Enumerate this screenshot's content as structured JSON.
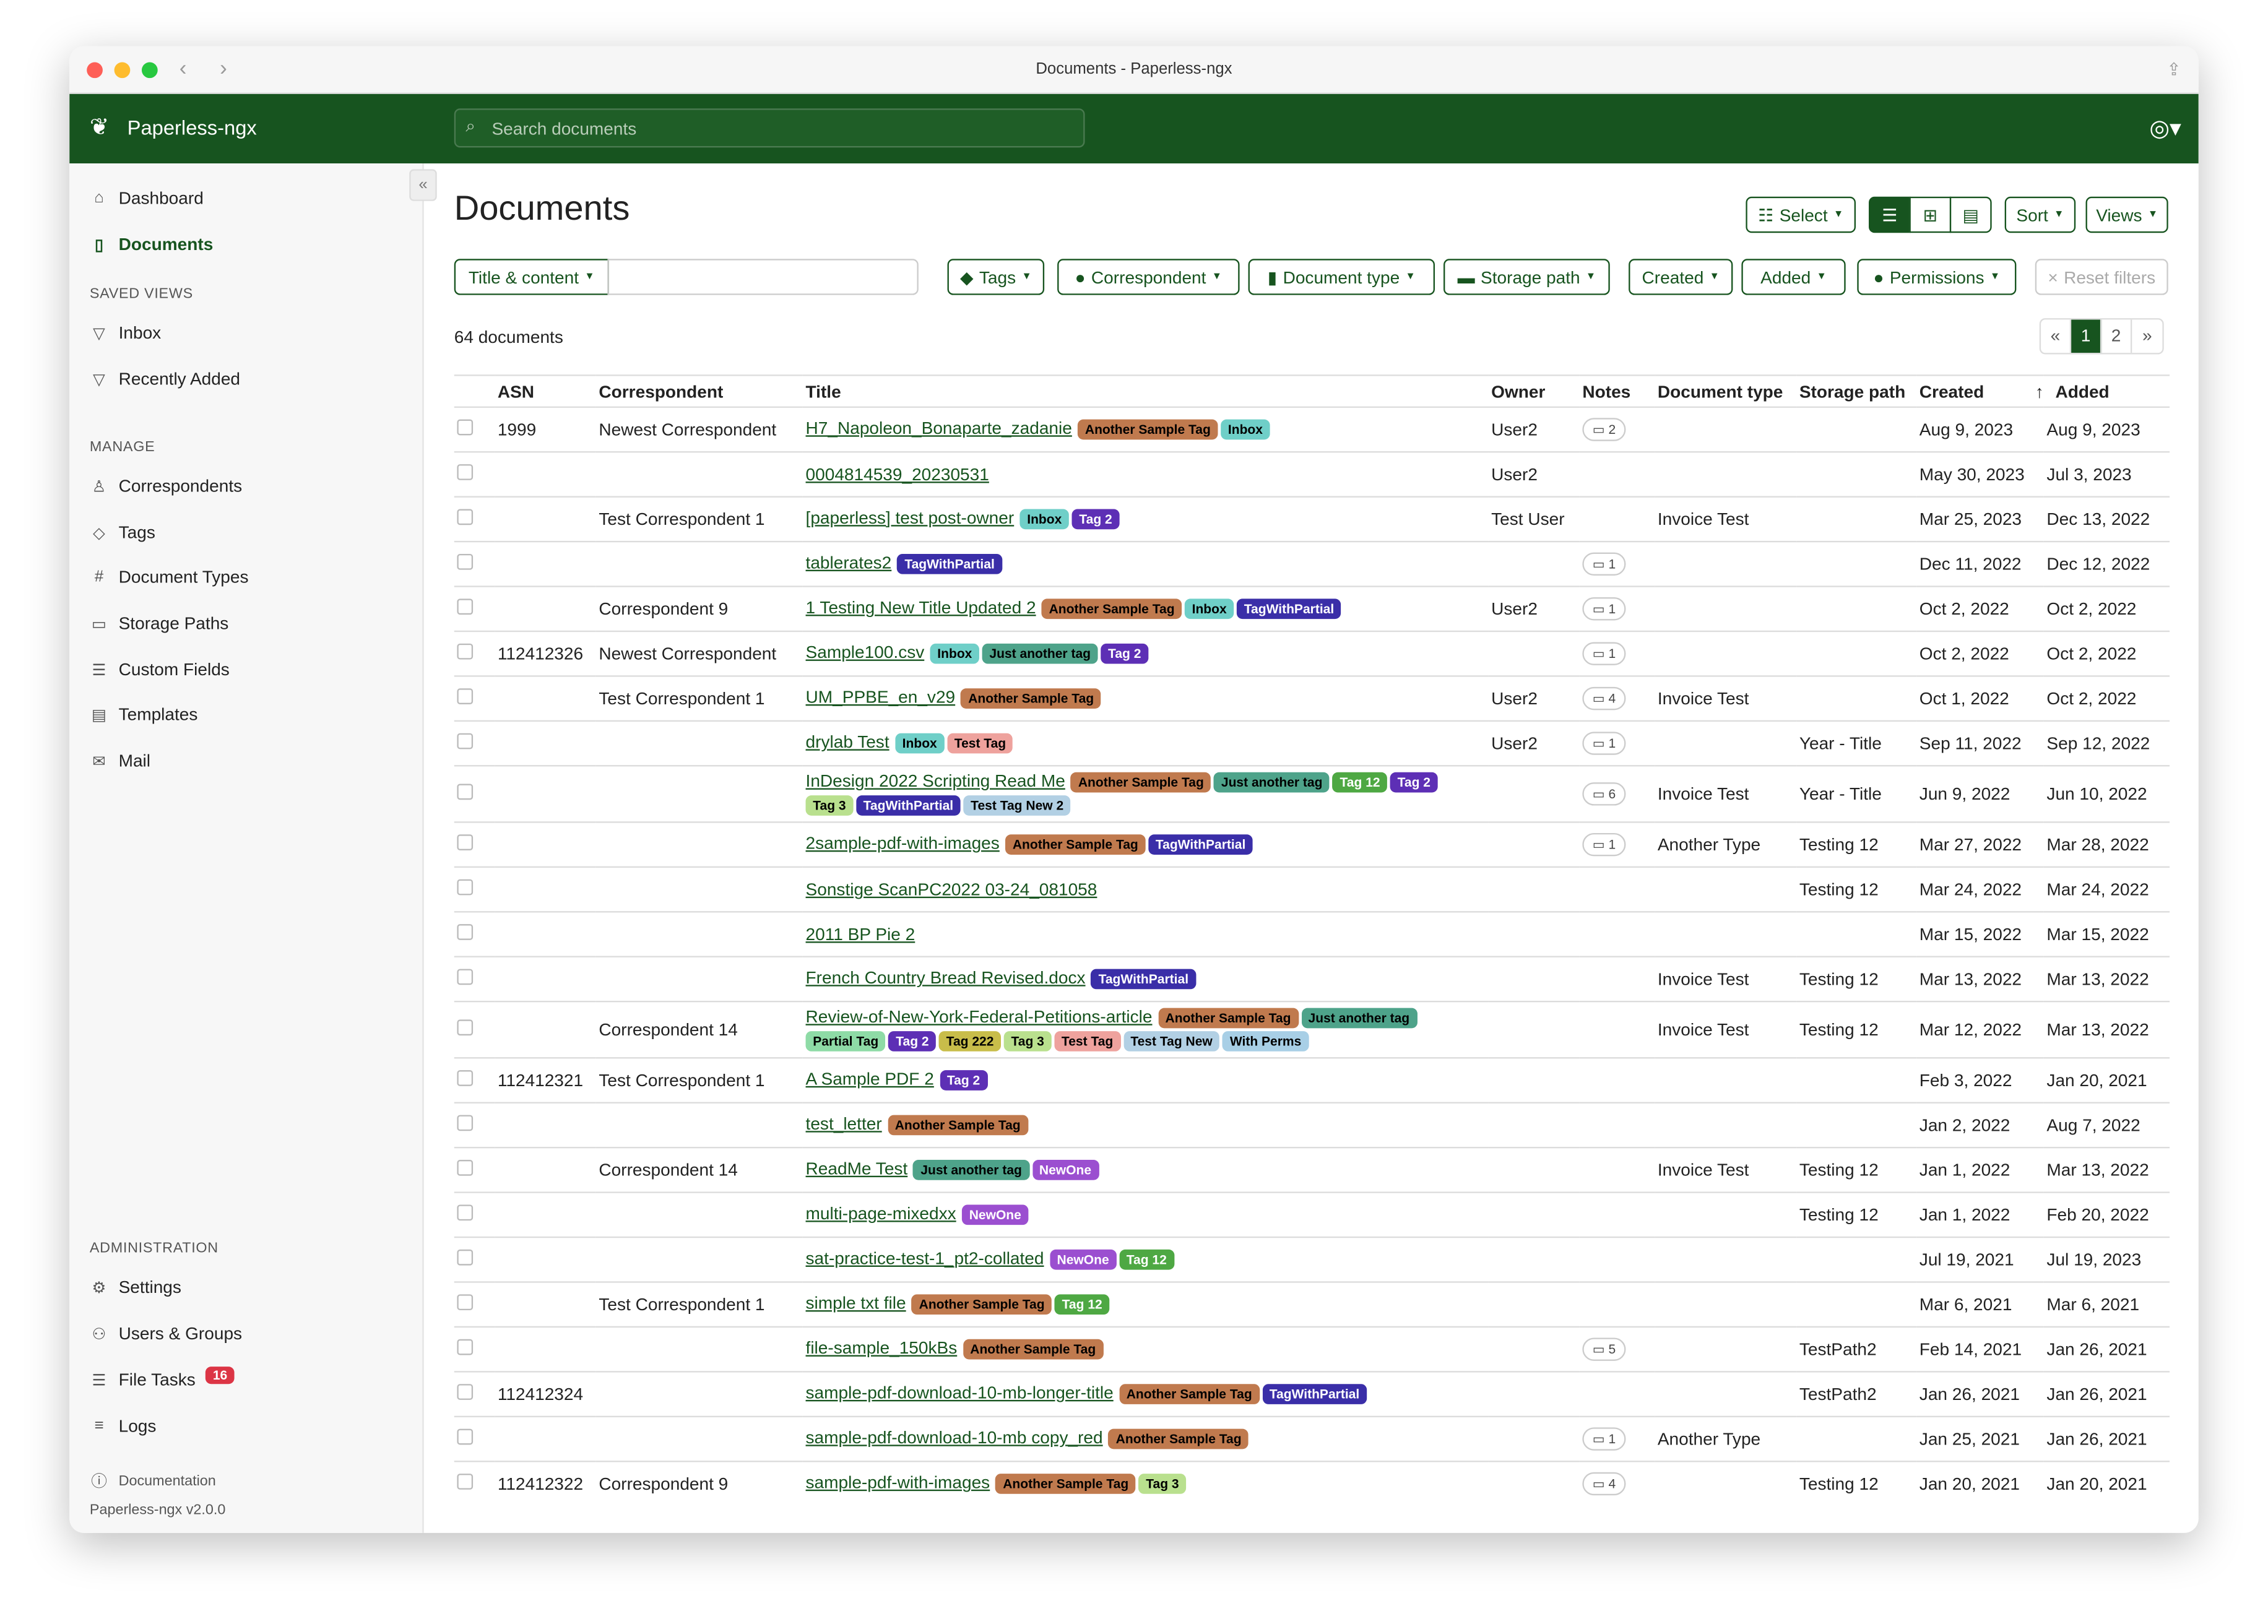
{
  "window": {
    "title": "Documents - Paperless-ngx"
  },
  "app": {
    "name": "Paperless-ngx",
    "search_placeholder": "Search documents"
  },
  "sidebar": {
    "items": [
      {
        "label": "Dashboard",
        "icon": "house-icon"
      },
      {
        "label": "Documents",
        "icon": "file-icon"
      }
    ],
    "saved_views_header": "SAVED VIEWS",
    "saved_views": [
      {
        "label": "Inbox"
      },
      {
        "label": "Recently Added"
      }
    ],
    "manage_header": "MANAGE",
    "manage": [
      {
        "label": "Correspondents",
        "icon": "person-icon"
      },
      {
        "label": "Tags",
        "icon": "tag-icon"
      },
      {
        "label": "Document Types",
        "icon": "hash-icon"
      },
      {
        "label": "Storage Paths",
        "icon": "folder-icon"
      },
      {
        "label": "Custom Fields",
        "icon": "ui-checks-icon"
      },
      {
        "label": "Templates",
        "icon": "file-text-icon"
      },
      {
        "label": "Mail",
        "icon": "envelope-icon"
      }
    ],
    "admin_header": "ADMINISTRATION",
    "admin": [
      {
        "label": "Settings",
        "icon": "gear-icon"
      },
      {
        "label": "Users & Groups",
        "icon": "people-icon"
      },
      {
        "label": "File Tasks",
        "icon": "list-icon",
        "badge": "16"
      },
      {
        "label": "Logs",
        "icon": "text-icon"
      }
    ],
    "documentation": "Documentation",
    "version": "Paperless-ngx v2.0.0"
  },
  "page": {
    "title": "Documents",
    "select": "Select",
    "sort": "Sort",
    "views": "Views",
    "count": "64 documents",
    "pages": [
      "«",
      "1",
      "2",
      "»"
    ]
  },
  "filters": {
    "text_mode": "Title & content",
    "tags": "Tags",
    "correspondent": "Correspondent",
    "document_type": "Document type",
    "storage_path": "Storage path",
    "created": "Created",
    "added": "Added",
    "permissions": "Permissions",
    "reset": "Reset filters"
  },
  "columns": [
    "ASN",
    "Correspondent",
    "Title",
    "Owner",
    "Notes",
    "Document type",
    "Storage path",
    "Created",
    "Added"
  ],
  "tag_colors": {
    "Another Sample Tag": [
      "#c07a4e",
      "#000"
    ],
    "Inbox": [
      "#6fcfc8",
      "#000"
    ],
    "Tag 2": [
      "#5d2fb5",
      "#fff"
    ],
    "TagWithPartial": [
      "#3a2ea8",
      "#fff"
    ],
    "Just another tag": [
      "#4ea38a",
      "#000"
    ],
    "Test Tag": [
      "#eea29d",
      "#000"
    ],
    "Tag 12": [
      "#4ea843",
      "#fff"
    ],
    "Tag 3": [
      "#b9e08e",
      "#000"
    ],
    "Test Tag New 2": [
      "#b2d0e4",
      "#000"
    ],
    "Partial Tag": [
      "#8edba6",
      "#000"
    ],
    "Tag 222": [
      "#c8bd4a",
      "#000"
    ],
    "Test Tag New": [
      "#b2d0e4",
      "#000"
    ],
    "With Perms": [
      "#a8cfe6",
      "#000"
    ],
    "NewOne": [
      "#9b4fd0",
      "#fff"
    ]
  },
  "rows": [
    {
      "asn": "1999",
      "correspondent": "Newest Correspondent",
      "title": "H7_Napoleon_Bonaparte_zadanie",
      "tags": [
        "Another Sample Tag",
        "Inbox"
      ],
      "owner": "User2",
      "notes": "2",
      "doctype": "",
      "path": "",
      "created": "Aug 9, 2023",
      "added": "Aug 9, 2023"
    },
    {
      "asn": "",
      "correspondent": "",
      "title": "0004814539_20230531",
      "tags": [],
      "owner": "User2",
      "notes": "",
      "doctype": "",
      "path": "",
      "created": "May 30, 2023",
      "added": "Jul 3, 2023"
    },
    {
      "asn": "",
      "correspondent": "Test Correspondent 1",
      "title": "[paperless] test post-owner",
      "tags": [
        "Inbox",
        "Tag 2"
      ],
      "owner": "Test User",
      "notes": "",
      "doctype": "Invoice Test",
      "path": "",
      "created": "Mar 25, 2023",
      "added": "Dec 13, 2022"
    },
    {
      "asn": "",
      "correspondent": "",
      "title": "tablerates2",
      "tags": [
        "TagWithPartial"
      ],
      "owner": "",
      "notes": "1",
      "doctype": "",
      "path": "",
      "created": "Dec 11, 2022",
      "added": "Dec 12, 2022"
    },
    {
      "asn": "",
      "correspondent": "Correspondent 9",
      "title": "1 Testing New Title Updated 2",
      "tags": [
        "Another Sample Tag",
        "Inbox",
        "TagWithPartial"
      ],
      "owner": "User2",
      "notes": "1",
      "doctype": "",
      "path": "",
      "created": "Oct 2, 2022",
      "added": "Oct 2, 2022"
    },
    {
      "asn": "112412326",
      "correspondent": "Newest Correspondent",
      "title": "Sample100.csv",
      "tags": [
        "Inbox",
        "Just another tag",
        "Tag 2"
      ],
      "owner": "",
      "notes": "1",
      "doctype": "",
      "path": "",
      "created": "Oct 2, 2022",
      "added": "Oct 2, 2022"
    },
    {
      "asn": "",
      "correspondent": "Test Correspondent 1",
      "title": "UM_PPBE_en_v29",
      "tags": [
        "Another Sample Tag"
      ],
      "owner": "User2",
      "notes": "4",
      "doctype": "Invoice Test",
      "path": "",
      "created": "Oct 1, 2022",
      "added": "Oct 2, 2022"
    },
    {
      "asn": "",
      "correspondent": "",
      "title": "drylab Test",
      "tags": [
        "Inbox",
        "Test Tag"
      ],
      "owner": "User2",
      "notes": "1",
      "doctype": "",
      "path": "Year - Title",
      "created": "Sep 11, 2022",
      "added": "Sep 12, 2022"
    },
    {
      "asn": "",
      "correspondent": "",
      "title": "InDesign 2022 Scripting Read Me",
      "tags": [
        "Another Sample Tag",
        "Just another tag",
        "Tag 12",
        "Tag 2",
        "Tag 3",
        "TagWithPartial",
        "Test Tag New 2"
      ],
      "owner": "",
      "notes": "6",
      "doctype": "Invoice Test",
      "path": "Year - Title",
      "created": "Jun 9, 2022",
      "added": "Jun 10, 2022"
    },
    {
      "asn": "",
      "correspondent": "",
      "title": "2sample-pdf-with-images",
      "tags": [
        "Another Sample Tag",
        "TagWithPartial"
      ],
      "owner": "",
      "notes": "1",
      "doctype": "Another Type",
      "path": "Testing 12",
      "created": "Mar 27, 2022",
      "added": "Mar 28, 2022"
    },
    {
      "asn": "",
      "correspondent": "",
      "title": "Sonstige ScanPC2022 03-24_081058",
      "tags": [],
      "owner": "",
      "notes": "",
      "doctype": "",
      "path": "Testing 12",
      "created": "Mar 24, 2022",
      "added": "Mar 24, 2022"
    },
    {
      "asn": "",
      "correspondent": "",
      "title": "2011 BP Pie 2",
      "tags": [],
      "owner": "",
      "notes": "",
      "doctype": "",
      "path": "",
      "created": "Mar 15, 2022",
      "added": "Mar 15, 2022"
    },
    {
      "asn": "",
      "correspondent": "",
      "title": "French Country Bread Revised.docx",
      "tags": [
        "TagWithPartial"
      ],
      "owner": "",
      "notes": "",
      "doctype": "Invoice Test",
      "path": "Testing 12",
      "created": "Mar 13, 2022",
      "added": "Mar 13, 2022"
    },
    {
      "asn": "",
      "correspondent": "Correspondent 14",
      "title": "Review-of-New-York-Federal-Petitions-article",
      "tags": [
        "Another Sample Tag",
        "Just another tag",
        "Partial Tag",
        "Tag 2",
        "Tag 222",
        "Tag 3",
        "Test Tag",
        "Test Tag New",
        "With Perms"
      ],
      "owner": "",
      "notes": "",
      "doctype": "Invoice Test",
      "path": "Testing 12",
      "created": "Mar 12, 2022",
      "added": "Mar 13, 2022"
    },
    {
      "asn": "112412321",
      "correspondent": "Test Correspondent 1",
      "title": "A Sample PDF 2",
      "tags": [
        "Tag 2"
      ],
      "owner": "",
      "notes": "",
      "doctype": "",
      "path": "",
      "created": "Feb 3, 2022",
      "added": "Jan 20, 2021"
    },
    {
      "asn": "",
      "correspondent": "",
      "title": "test_letter",
      "tags": [
        "Another Sample Tag"
      ],
      "owner": "",
      "notes": "",
      "doctype": "",
      "path": "",
      "created": "Jan 2, 2022",
      "added": "Aug 7, 2022"
    },
    {
      "asn": "",
      "correspondent": "Correspondent 14",
      "title": "ReadMe Test",
      "tags": [
        "Just another tag",
        "NewOne"
      ],
      "owner": "",
      "notes": "",
      "doctype": "Invoice Test",
      "path": "Testing 12",
      "created": "Jan 1, 2022",
      "added": "Mar 13, 2022"
    },
    {
      "asn": "",
      "correspondent": "",
      "title": "multi-page-mixedxx",
      "tags": [
        "NewOne"
      ],
      "owner": "",
      "notes": "",
      "doctype": "",
      "path": "Testing 12",
      "created": "Jan 1, 2022",
      "added": "Feb 20, 2022"
    },
    {
      "asn": "",
      "correspondent": "",
      "title": "sat-practice-test-1_pt2-collated",
      "tags": [
        "NewOne",
        "Tag 12"
      ],
      "owner": "",
      "notes": "",
      "doctype": "",
      "path": "",
      "created": "Jul 19, 2021",
      "added": "Jul 19, 2023"
    },
    {
      "asn": "",
      "correspondent": "Test Correspondent 1",
      "title": "simple txt file",
      "tags": [
        "Another Sample Tag",
        "Tag 12"
      ],
      "owner": "",
      "notes": "",
      "doctype": "",
      "path": "",
      "created": "Mar 6, 2021",
      "added": "Mar 6, 2021"
    },
    {
      "asn": "",
      "correspondent": "",
      "title": "file-sample_150kBs",
      "tags": [
        "Another Sample Tag"
      ],
      "owner": "",
      "notes": "5",
      "doctype": "",
      "path": "TestPath2",
      "created": "Feb 14, 2021",
      "added": "Jan 26, 2021"
    },
    {
      "asn": "112412324",
      "correspondent": "",
      "title": "sample-pdf-download-10-mb-longer-title",
      "tags": [
        "Another Sample Tag",
        "TagWithPartial"
      ],
      "owner": "",
      "notes": "",
      "doctype": "",
      "path": "TestPath2",
      "created": "Jan 26, 2021",
      "added": "Jan 26, 2021"
    },
    {
      "asn": "",
      "correspondent": "",
      "title": "sample-pdf-download-10-mb copy_red",
      "tags": [
        "Another Sample Tag"
      ],
      "owner": "",
      "notes": "1",
      "doctype": "Another Type",
      "path": "",
      "created": "Jan 25, 2021",
      "added": "Jan 26, 2021"
    },
    {
      "asn": "112412322",
      "correspondent": "Correspondent 9",
      "title": "sample-pdf-with-images",
      "tags": [
        "Another Sample Tag",
        "Tag 3"
      ],
      "owner": "",
      "notes": "4",
      "doctype": "",
      "path": "Testing 12",
      "created": "Jan 20, 2021",
      "added": "Jan 20, 2021"
    }
  ]
}
